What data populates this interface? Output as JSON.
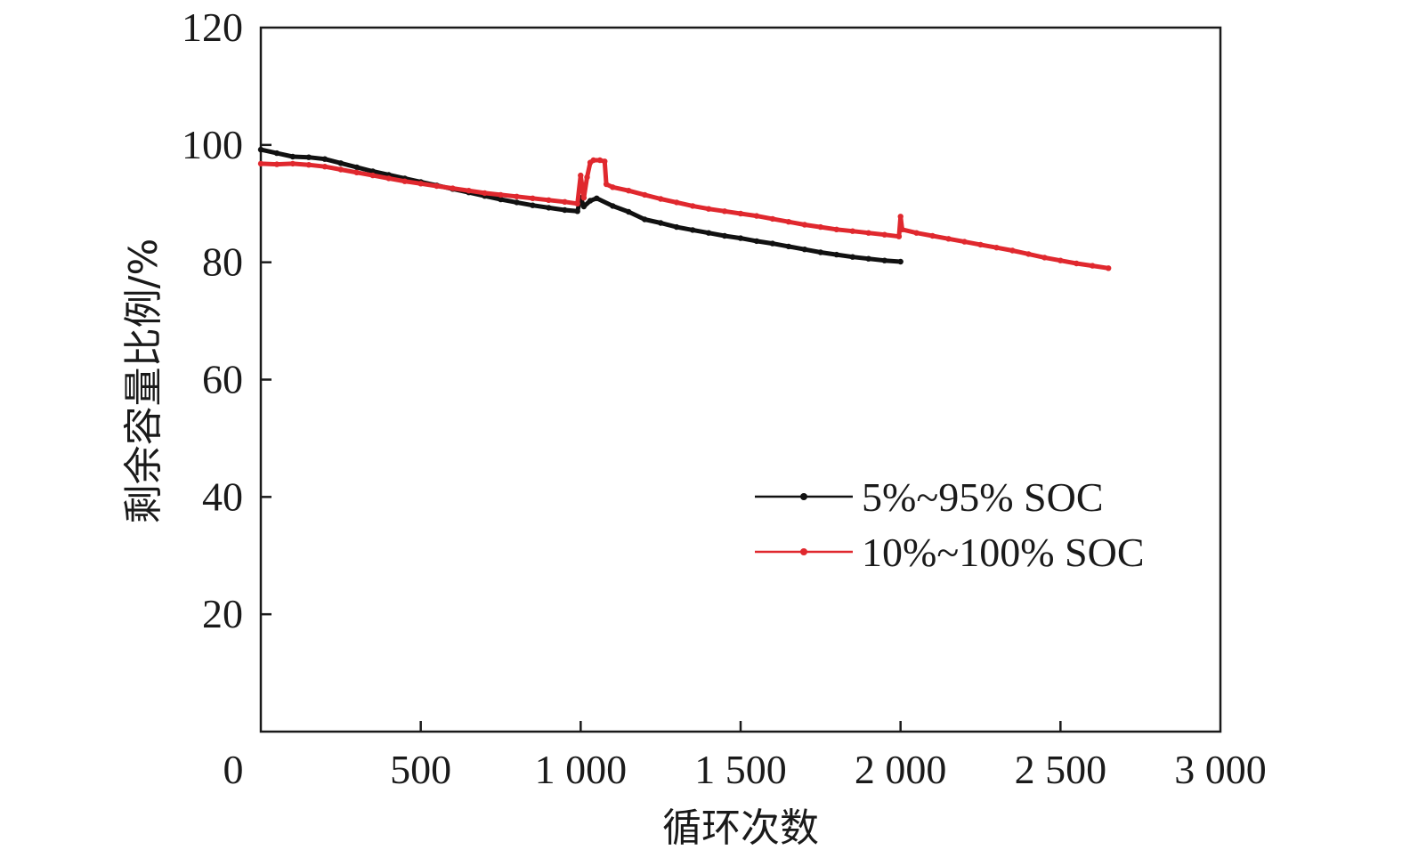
{
  "chart_data": {
    "type": "line",
    "title": "",
    "xlabel": "循环次数",
    "ylabel": "剩余容量比例/%",
    "xlim": [
      0,
      3000
    ],
    "ylim": [
      0,
      120
    ],
    "x_ticks": [
      {
        "value": 0,
        "label": "0"
      },
      {
        "value": 500,
        "label": "500"
      },
      {
        "value": 1000,
        "label": "1 000"
      },
      {
        "value": 1500,
        "label": "1 500"
      },
      {
        "value": 2000,
        "label": "2 000"
      },
      {
        "value": 2500,
        "label": "2 500"
      },
      {
        "value": 3000,
        "label": "3 000"
      }
    ],
    "y_ticks": [
      {
        "value": 20,
        "label": "20"
      },
      {
        "value": 40,
        "label": "40"
      },
      {
        "value": 60,
        "label": "60"
      },
      {
        "value": 80,
        "label": "80"
      },
      {
        "value": 100,
        "label": "100"
      },
      {
        "value": 120,
        "label": "120"
      }
    ],
    "grid": false,
    "legend_position": "lower-right",
    "series": [
      {
        "name": "5%~95% SOC",
        "color": "#111111",
        "points": [
          [
            0,
            99.2
          ],
          [
            50,
            98.6
          ],
          [
            100,
            98.0
          ],
          [
            150,
            97.9
          ],
          [
            200,
            97.6
          ],
          [
            250,
            96.9
          ],
          [
            300,
            96.2
          ],
          [
            350,
            95.5
          ],
          [
            400,
            94.9
          ],
          [
            450,
            94.3
          ],
          [
            500,
            93.7
          ],
          [
            550,
            93.1
          ],
          [
            600,
            92.5
          ],
          [
            650,
            91.9
          ],
          [
            700,
            91.3
          ],
          [
            750,
            90.7
          ],
          [
            800,
            90.2
          ],
          [
            850,
            89.7
          ],
          [
            900,
            89.3
          ],
          [
            950,
            88.9
          ],
          [
            990,
            88.7
          ],
          [
            1000,
            91.0
          ],
          [
            1010,
            89.5
          ],
          [
            1030,
            90.5
          ],
          [
            1050,
            90.9
          ],
          [
            1100,
            89.6
          ],
          [
            1150,
            88.6
          ],
          [
            1200,
            87.3
          ],
          [
            1250,
            86.7
          ],
          [
            1300,
            86.0
          ],
          [
            1350,
            85.5
          ],
          [
            1400,
            85.0
          ],
          [
            1450,
            84.5
          ],
          [
            1500,
            84.1
          ],
          [
            1550,
            83.6
          ],
          [
            1600,
            83.2
          ],
          [
            1650,
            82.7
          ],
          [
            1700,
            82.2
          ],
          [
            1750,
            81.7
          ],
          [
            1800,
            81.3
          ],
          [
            1850,
            80.9
          ],
          [
            1900,
            80.6
          ],
          [
            1950,
            80.3
          ],
          [
            2000,
            80.1
          ]
        ]
      },
      {
        "name": "10%~100% SOC",
        "color": "#e0282e",
        "points": [
          [
            0,
            96.8
          ],
          [
            50,
            96.7
          ],
          [
            100,
            96.8
          ],
          [
            150,
            96.6
          ],
          [
            200,
            96.3
          ],
          [
            250,
            95.8
          ],
          [
            300,
            95.3
          ],
          [
            350,
            94.8
          ],
          [
            400,
            94.3
          ],
          [
            450,
            93.8
          ],
          [
            500,
            93.4
          ],
          [
            550,
            93.0
          ],
          [
            600,
            92.6
          ],
          [
            650,
            92.2
          ],
          [
            700,
            91.8
          ],
          [
            750,
            91.5
          ],
          [
            800,
            91.2
          ],
          [
            850,
            90.9
          ],
          [
            900,
            90.6
          ],
          [
            950,
            90.3
          ],
          [
            990,
            90.0
          ],
          [
            1000,
            94.8
          ],
          [
            1010,
            91.0
          ],
          [
            1020,
            94.5
          ],
          [
            1030,
            97.0
          ],
          [
            1040,
            97.4
          ],
          [
            1060,
            97.4
          ],
          [
            1075,
            97.2
          ],
          [
            1080,
            93.3
          ],
          [
            1100,
            92.8
          ],
          [
            1150,
            92.2
          ],
          [
            1200,
            91.5
          ],
          [
            1250,
            90.8
          ],
          [
            1300,
            90.2
          ],
          [
            1350,
            89.6
          ],
          [
            1400,
            89.1
          ],
          [
            1450,
            88.7
          ],
          [
            1500,
            88.3
          ],
          [
            1550,
            87.9
          ],
          [
            1600,
            87.4
          ],
          [
            1650,
            86.9
          ],
          [
            1700,
            86.4
          ],
          [
            1750,
            86.0
          ],
          [
            1800,
            85.6
          ],
          [
            1850,
            85.3
          ],
          [
            1900,
            85.0
          ],
          [
            1950,
            84.7
          ],
          [
            1995,
            84.4
          ],
          [
            2000,
            87.8
          ],
          [
            2005,
            85.6
          ],
          [
            2050,
            85.0
          ],
          [
            2100,
            84.5
          ],
          [
            2150,
            84.0
          ],
          [
            2200,
            83.5
          ],
          [
            2250,
            83.0
          ],
          [
            2300,
            82.5
          ],
          [
            2350,
            82.0
          ],
          [
            2400,
            81.4
          ],
          [
            2450,
            80.8
          ],
          [
            2500,
            80.3
          ],
          [
            2550,
            79.8
          ],
          [
            2600,
            79.4
          ],
          [
            2650,
            79.0
          ]
        ]
      }
    ]
  }
}
